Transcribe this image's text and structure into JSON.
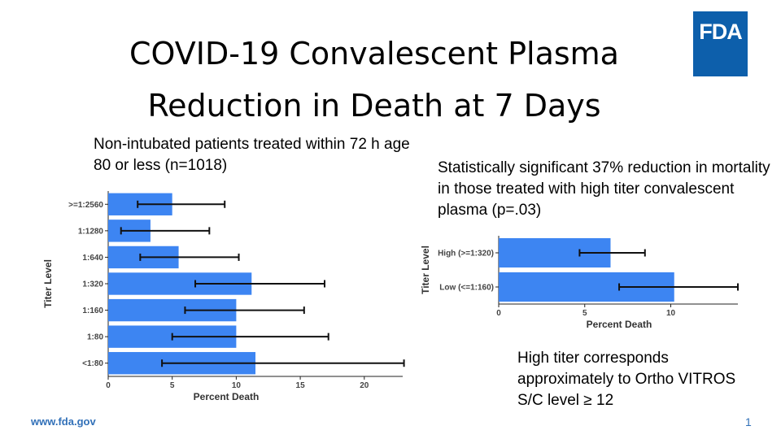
{
  "slide": {
    "title_line1": "COVID-19 Convalescent Plasma",
    "title_line2": "Reduction in Death at 7 Days",
    "logo": "FDA",
    "note_left": "Non-intubated patients treated within 72 h age 80 or less (n=1018)",
    "note_right": "Statistically significant 37% reduction in mortality in those treated with high titer convalescent plasma (p=.03)",
    "note_bottom": "High titer corresponds approximately to Ortho VITROS S/C level ≥ 12",
    "footer_url": "www.fda.gov",
    "page_number": "1",
    "colors": {
      "bar": "#3d85f2",
      "logo_bg": "#0d5fab",
      "footer": "#3170b8"
    }
  },
  "chart_data": [
    {
      "type": "bar",
      "orientation": "horizontal",
      "categories": [
        ">=1:2560",
        "1:1280",
        "1:640",
        "1:320",
        "1:160",
        "1:80",
        "<1:80"
      ],
      "values": [
        5,
        3.3,
        5.5,
        11.2,
        10,
        10,
        11.5
      ],
      "error_low": [
        2.3,
        1.0,
        2.5,
        6.8,
        6.0,
        5.0,
        4.2
      ],
      "error_high": [
        9.1,
        7.9,
        10.2,
        16.9,
        15.3,
        17.2,
        23.1
      ],
      "xlabel": "Percent Death",
      "ylabel": "Titer Level",
      "xlim": [
        0,
        23
      ],
      "xticks": [
        0,
        5,
        10,
        15,
        20
      ]
    },
    {
      "type": "bar",
      "orientation": "horizontal",
      "categories": [
        "High (>=1:320)",
        "Low (<=1:160)"
      ],
      "values": [
        6.5,
        10.2
      ],
      "error_low": [
        4.7,
        7.0
      ],
      "error_high": [
        8.5,
        13.9
      ],
      "xlabel": "Percent Death",
      "ylabel": "Titer Level",
      "xlim": [
        0,
        13.9
      ],
      "xticks": [
        0,
        5,
        10
      ]
    }
  ]
}
